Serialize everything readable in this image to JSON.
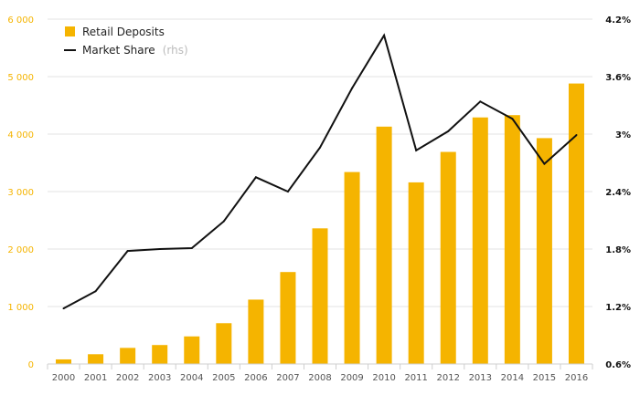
{
  "chart_data": {
    "type": "bar",
    "categories": [
      "2000",
      "2001",
      "2002",
      "2003",
      "2004",
      "2005",
      "2006",
      "2007",
      "2008",
      "2009",
      "2010",
      "2011",
      "2012",
      "2013",
      "2014",
      "2015",
      "2016"
    ],
    "series": [
      {
        "name": "Retail Deposits",
        "type": "bar",
        "axis": "left",
        "color": "#f5b400",
        "values": [
          80,
          170,
          280,
          330,
          480,
          710,
          1120,
          1600,
          2360,
          3340,
          4130,
          3160,
          3690,
          4290,
          4330,
          3930,
          4880
        ]
      },
      {
        "name": "Market Share",
        "name_suffix": "(rhs)",
        "type": "line",
        "axis": "right",
        "color": "#111111",
        "values": [
          1.18,
          1.36,
          1.78,
          1.8,
          1.81,
          2.09,
          2.55,
          2.4,
          2.86,
          3.48,
          4.03,
          2.83,
          3.03,
          3.34,
          3.16,
          2.69,
          2.99
        ]
      }
    ],
    "y_left": {
      "ylim": [
        0,
        6000
      ],
      "ticks": [
        0,
        1000,
        2000,
        3000,
        4000,
        5000,
        6000
      ],
      "tick_labels": [
        "0",
        "1 000",
        "2 000",
        "3 000",
        "4 000",
        "5 000",
        "6 000"
      ]
    },
    "y_right": {
      "ylim": [
        0.6,
        4.2
      ],
      "ticks": [
        0.6,
        1.2,
        1.8,
        2.4,
        3.0,
        3.6,
        4.2
      ],
      "tick_labels": [
        "0.6%",
        "1.2%",
        "1.8%",
        "2.4%",
        "3%",
        "3.6%",
        "4.2%"
      ]
    },
    "grid": true,
    "legend": "top-left"
  }
}
